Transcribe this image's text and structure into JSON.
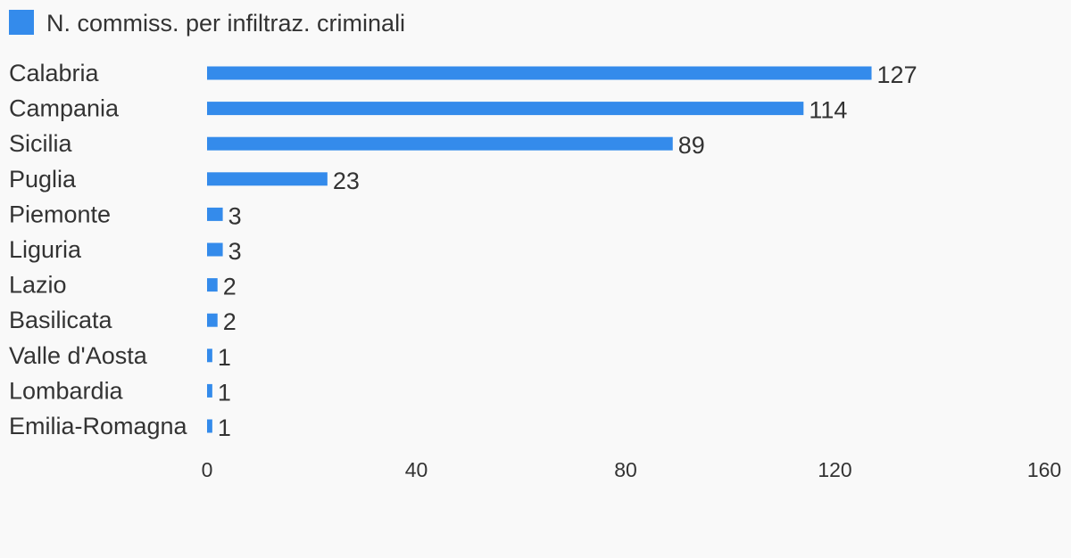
{
  "colors": {
    "bar": "#348beb",
    "text": "#333333",
    "background": "#f9f9f9"
  },
  "legend": {
    "label": "N. commiss. per infiltraz. criminali"
  },
  "chart_data": {
    "type": "bar",
    "orientation": "horizontal",
    "categories": [
      "Calabria",
      "Campania",
      "Sicilia",
      "Puglia",
      "Piemonte",
      "Liguria",
      "Lazio",
      "Basilicata",
      "Valle d'Aosta",
      "Lombardia",
      "Emilia-Romagna"
    ],
    "series": [
      {
        "name": "N. commiss. per infiltraz. criminali",
        "values": [
          127,
          114,
          89,
          23,
          3,
          3,
          2,
          2,
          1,
          1,
          1
        ]
      }
    ],
    "xlim": [
      0,
      160
    ],
    "xticks": [
      "0",
      "40",
      "80",
      "120",
      "160"
    ],
    "data_labels": true,
    "grid": false,
    "legend_position": "top-left"
  }
}
